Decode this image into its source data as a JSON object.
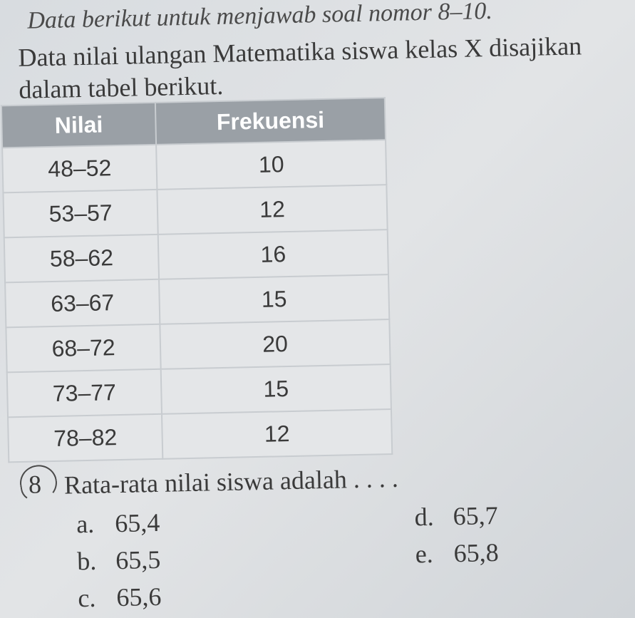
{
  "instruction": "Data berikut untuk menjawab soal nomor 8–10.",
  "description": "Data nilai ulangan Matematika siswa kelas X disajikan dalam tabel berikut.",
  "table": {
    "columns": [
      "Nilai",
      "Frekuensi"
    ],
    "rows": [
      [
        "48–52",
        "10"
      ],
      [
        "53–57",
        "12"
      ],
      [
        "58–62",
        "16"
      ],
      [
        "63–67",
        "15"
      ],
      [
        "68–72",
        "20"
      ],
      [
        "73–77",
        "15"
      ],
      [
        "78–82",
        "12"
      ]
    ],
    "header_bg": "#9aa0a6",
    "header_fg": "#ffffff",
    "cell_bg": "#e4e6e8",
    "cell_fg": "#3a3a3a",
    "border_color": "#c8ccd0",
    "font_size": 32
  },
  "question": {
    "number": "8",
    "text": "Rata-rata nilai siswa adalah . . . .",
    "options": {
      "a": "65,4",
      "b": "65,5",
      "c": "65,6",
      "d": "65,7",
      "e": "65,8"
    }
  },
  "page_bg": "#dce0e4",
  "text_color": "#3a3a3a"
}
